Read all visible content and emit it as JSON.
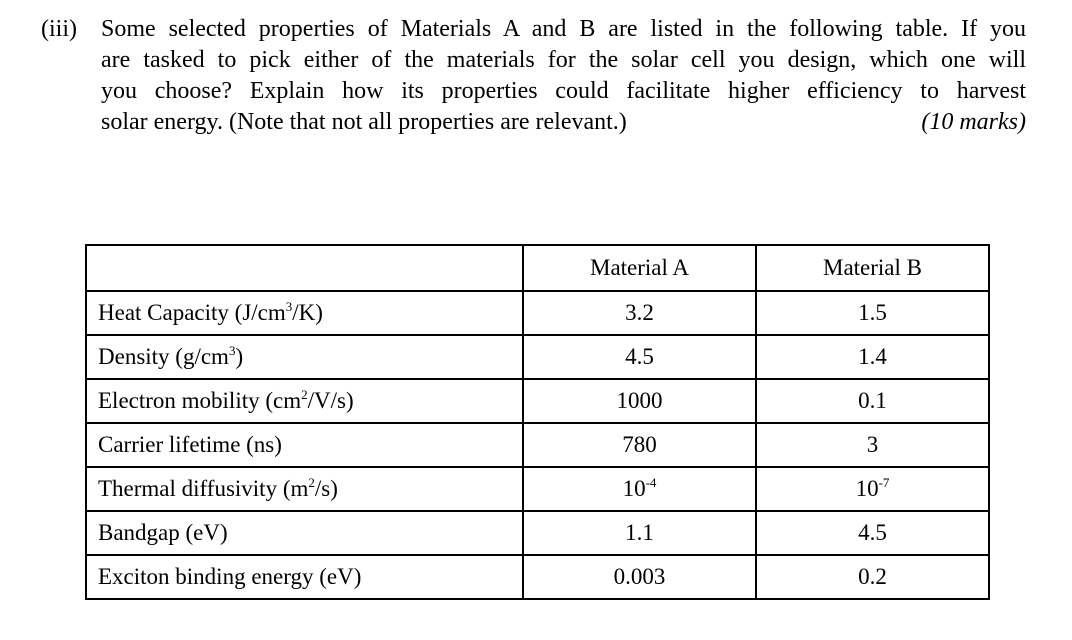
{
  "question": {
    "label": "(iii)",
    "lines": [
      "Some selected properties of Materials A and B are listed in the following table. If you",
      "are tasked to pick either of the materials for the solar cell you design, which one will",
      "you choose? Explain how its properties could facilitate higher efficiency to harvest",
      "solar energy. (Note that not all properties are relevant.)"
    ],
    "marks": "(10 marks)"
  },
  "table": {
    "headers": [
      "",
      "Material A",
      "Material B"
    ],
    "rows": [
      {
        "property": "Heat Capacity (J/cm",
        "sup": "3",
        "suffix": "/K)",
        "a": "3.2",
        "a_sup": "",
        "b": "1.5",
        "b_sup": ""
      },
      {
        "property": "Density (g/cm",
        "sup": "3",
        "suffix": ")",
        "a": "4.5",
        "a_sup": "",
        "b": "1.4",
        "b_sup": ""
      },
      {
        "property": "Electron mobility (cm",
        "sup": "2",
        "suffix": "/V/s)",
        "a": "1000",
        "a_sup": "",
        "b": "0.1",
        "b_sup": ""
      },
      {
        "property": "Carrier lifetime (ns)",
        "sup": "",
        "suffix": "",
        "a": "780",
        "a_sup": "",
        "b": "3",
        "b_sup": ""
      },
      {
        "property": "Thermal diffusivity (m",
        "sup": "2",
        "suffix": "/s)",
        "a": "10",
        "a_sup": "-4",
        "b": "10",
        "b_sup": "-7"
      },
      {
        "property": "Bandgap (eV)",
        "sup": "",
        "suffix": "",
        "a": "1.1",
        "a_sup": "",
        "b": "4.5",
        "b_sup": ""
      },
      {
        "property": "Exciton binding energy (eV)",
        "sup": "",
        "suffix": "",
        "a": "0.003",
        "a_sup": "",
        "b": "0.2",
        "b_sup": ""
      }
    ]
  }
}
